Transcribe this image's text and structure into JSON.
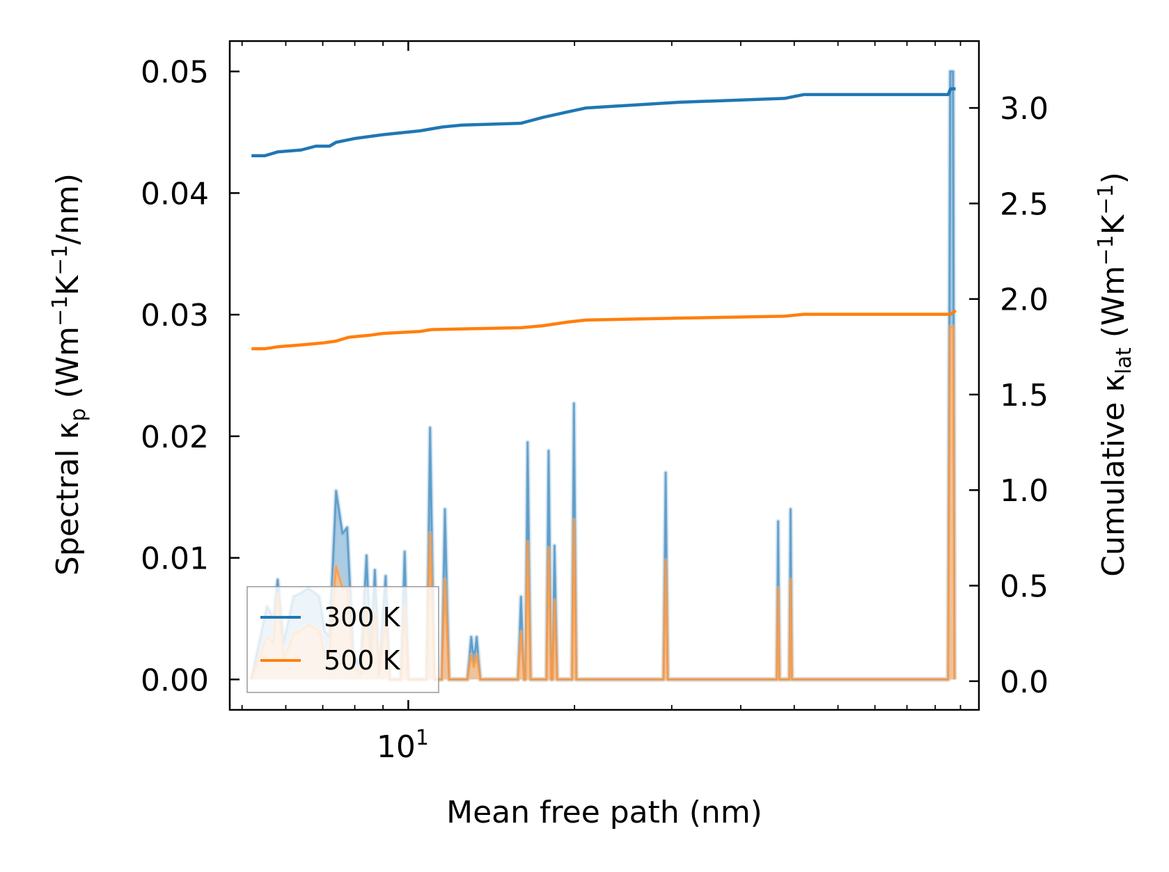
{
  "chart_data": {
    "type": "line",
    "xlabel": "Mean free path (nm)",
    "xscale": "log",
    "xlim": [
      4.75,
      108
    ],
    "xticks": [
      {
        "value": 10,
        "base": "10",
        "exp": "1"
      }
    ],
    "left_axis": {
      "label": {
        "main": "Spectral κ",
        "sub": "p",
        "unit_pre": " (Wm",
        "sup1": "−1",
        "mid": "K",
        "sup2": "−1",
        "unit_post": "/nm)"
      },
      "ylim": [
        -0.0025,
        0.0525
      ],
      "ticks": [
        0.0,
        0.01,
        0.02,
        0.03,
        0.04,
        0.05
      ],
      "tick_labels": [
        "0.00",
        "0.01",
        "0.02",
        "0.03",
        "0.04",
        "0.05"
      ]
    },
    "right_axis": {
      "label": {
        "main": "Cumulative κ",
        "sub": "lat",
        "unit_pre": " (Wm",
        "sup1": "−1",
        "mid": "K",
        "sup2": "−1",
        "unit_post": ")"
      },
      "ylim": [
        -0.15,
        3.35
      ],
      "ticks": [
        0.0,
        0.5,
        1.0,
        1.5,
        2.0,
        2.5,
        3.0
      ],
      "tick_labels": [
        "0.0",
        "0.5",
        "1.0",
        "1.5",
        "2.0",
        "2.5",
        "3.0"
      ]
    },
    "series": [
      {
        "name": "300 K",
        "color": "#1f77b4",
        "fill_color": "#8fbbd9",
        "cumulative": [
          [
            5.2,
            2.75
          ],
          [
            5.5,
            2.75
          ],
          [
            5.8,
            2.77
          ],
          [
            6.4,
            2.78
          ],
          [
            6.8,
            2.8
          ],
          [
            7.2,
            2.8
          ],
          [
            7.4,
            2.82
          ],
          [
            8.0,
            2.84
          ],
          [
            9.0,
            2.86
          ],
          [
            10.5,
            2.88
          ],
          [
            11.5,
            2.9
          ],
          [
            12.5,
            2.91
          ],
          [
            16.0,
            2.92
          ],
          [
            17.5,
            2.95
          ],
          [
            19.5,
            2.98
          ],
          [
            21.0,
            3.0
          ],
          [
            31.0,
            3.03
          ],
          [
            48.0,
            3.05
          ],
          [
            52.0,
            3.07
          ],
          [
            95.0,
            3.07
          ],
          [
            96.0,
            3.1
          ],
          [
            98.0,
            3.1
          ]
        ],
        "spectral": [
          [
            5.2,
            0
          ],
          [
            5.55,
            0.006
          ],
          [
            5.7,
            0.005
          ],
          [
            5.8,
            0.0082
          ],
          [
            5.95,
            0.003
          ],
          [
            6.2,
            0.0068
          ],
          [
            6.4,
            0.0071
          ],
          [
            6.6,
            0.0075
          ],
          [
            6.9,
            0.0068
          ],
          [
            7.05,
            0.004
          ],
          [
            7.2,
            0.0035
          ],
          [
            7.4,
            0.0155
          ],
          [
            7.6,
            0.012
          ],
          [
            7.75,
            0.0125
          ],
          [
            7.95,
            0.002
          ],
          [
            8.2,
            0.001
          ],
          [
            8.4,
            0.0102
          ],
          [
            8.55,
            0.002
          ],
          [
            8.7,
            0.009
          ],
          [
            8.85,
            0.0005
          ],
          [
            9.1,
            0.0085
          ],
          [
            9.25,
            0
          ],
          [
            9.7,
            0
          ],
          [
            9.85,
            0.0105
          ],
          [
            10.0,
            0
          ],
          [
            10.8,
            0
          ],
          [
            10.95,
            0.0207
          ],
          [
            11.15,
            0
          ],
          [
            11.5,
            0
          ],
          [
            11.65,
            0.014
          ],
          [
            11.85,
            0
          ],
          [
            12.8,
            0
          ],
          [
            13.0,
            0.0035
          ],
          [
            13.15,
            0.0015
          ],
          [
            13.3,
            0.0035
          ],
          [
            13.5,
            0
          ],
          [
            15.8,
            0
          ],
          [
            16.0,
            0.0068
          ],
          [
            16.2,
            0
          ],
          [
            16.3,
            0
          ],
          [
            16.45,
            0.0195
          ],
          [
            16.65,
            0
          ],
          [
            17.8,
            0
          ],
          [
            17.95,
            0.0188
          ],
          [
            18.15,
            0
          ],
          [
            18.25,
            0
          ],
          [
            18.4,
            0.011
          ],
          [
            18.6,
            0
          ],
          [
            19.8,
            0
          ],
          [
            19.95,
            0.0227
          ],
          [
            20.15,
            0
          ],
          [
            29.0,
            0
          ],
          [
            29.25,
            0.017
          ],
          [
            29.5,
            0
          ],
          [
            46.5,
            0
          ],
          [
            46.75,
            0.013
          ],
          [
            47.0,
            0
          ],
          [
            49.0,
            0
          ],
          [
            49.25,
            0.014
          ],
          [
            49.5,
            0
          ],
          [
            95.0,
            0
          ],
          [
            95.8,
            0.05
          ],
          [
            97.0,
            0.05
          ],
          [
            97.5,
            0
          ]
        ]
      },
      {
        "name": "500 K",
        "color": "#ff7f0e",
        "fill_color": "#ffc089",
        "cumulative": [
          [
            5.2,
            1.74
          ],
          [
            5.5,
            1.74
          ],
          [
            5.8,
            1.75
          ],
          [
            6.4,
            1.76
          ],
          [
            7.0,
            1.77
          ],
          [
            7.4,
            1.78
          ],
          [
            7.8,
            1.8
          ],
          [
            8.5,
            1.81
          ],
          [
            9.0,
            1.82
          ],
          [
            10.5,
            1.83
          ],
          [
            11.0,
            1.84
          ],
          [
            16.0,
            1.85
          ],
          [
            17.5,
            1.86
          ],
          [
            19.5,
            1.88
          ],
          [
            21.0,
            1.89
          ],
          [
            31.0,
            1.9
          ],
          [
            48.0,
            1.91
          ],
          [
            52.0,
            1.92
          ],
          [
            96.0,
            1.92
          ],
          [
            98.0,
            1.94
          ]
        ],
        "spectral": [
          [
            5.2,
            0
          ],
          [
            5.55,
            0.0035
          ],
          [
            5.7,
            0.003
          ],
          [
            5.8,
            0.007
          ],
          [
            5.95,
            0.0015
          ],
          [
            6.2,
            0.0038
          ],
          [
            6.4,
            0.004
          ],
          [
            6.6,
            0.0045
          ],
          [
            6.9,
            0.004
          ],
          [
            7.05,
            0.002
          ],
          [
            7.2,
            0.002
          ],
          [
            7.4,
            0.0093
          ],
          [
            7.6,
            0.0075
          ],
          [
            7.75,
            0.0075
          ],
          [
            7.95,
            0.001
          ],
          [
            8.2,
            0.0005
          ],
          [
            8.4,
            0.006
          ],
          [
            8.55,
            0.001
          ],
          [
            8.7,
            0.0055
          ],
          [
            8.85,
            0.0003
          ],
          [
            9.1,
            0.005
          ],
          [
            9.25,
            0
          ],
          [
            9.7,
            0
          ],
          [
            9.85,
            0.006
          ],
          [
            10.0,
            0
          ],
          [
            10.8,
            0
          ],
          [
            10.95,
            0.012
          ],
          [
            11.15,
            0
          ],
          [
            11.5,
            0
          ],
          [
            11.65,
            0.0082
          ],
          [
            11.85,
            0
          ],
          [
            12.8,
            0
          ],
          [
            13.0,
            0.002
          ],
          [
            13.15,
            0.001
          ],
          [
            13.3,
            0.002
          ],
          [
            13.5,
            0
          ],
          [
            15.8,
            0
          ],
          [
            16.0,
            0.0039
          ],
          [
            16.2,
            0
          ],
          [
            16.3,
            0
          ],
          [
            16.45,
            0.0113
          ],
          [
            16.65,
            0
          ],
          [
            17.8,
            0
          ],
          [
            17.95,
            0.0108
          ],
          [
            18.15,
            0
          ],
          [
            18.25,
            0
          ],
          [
            18.4,
            0.0065
          ],
          [
            18.6,
            0
          ],
          [
            19.8,
            0
          ],
          [
            19.95,
            0.0131
          ],
          [
            20.15,
            0
          ],
          [
            29.0,
            0
          ],
          [
            29.25,
            0.0098
          ],
          [
            29.5,
            0
          ],
          [
            46.5,
            0
          ],
          [
            46.75,
            0.0075
          ],
          [
            47.0,
            0
          ],
          [
            49.0,
            0
          ],
          [
            49.25,
            0.0082
          ],
          [
            49.5,
            0
          ],
          [
            95.0,
            0
          ],
          [
            95.8,
            0.029
          ],
          [
            97.0,
            0.029
          ],
          [
            97.5,
            0
          ]
        ]
      }
    ],
    "legend": {
      "position": "lower-left",
      "entries": [
        "300 K",
        "500 K"
      ]
    }
  }
}
